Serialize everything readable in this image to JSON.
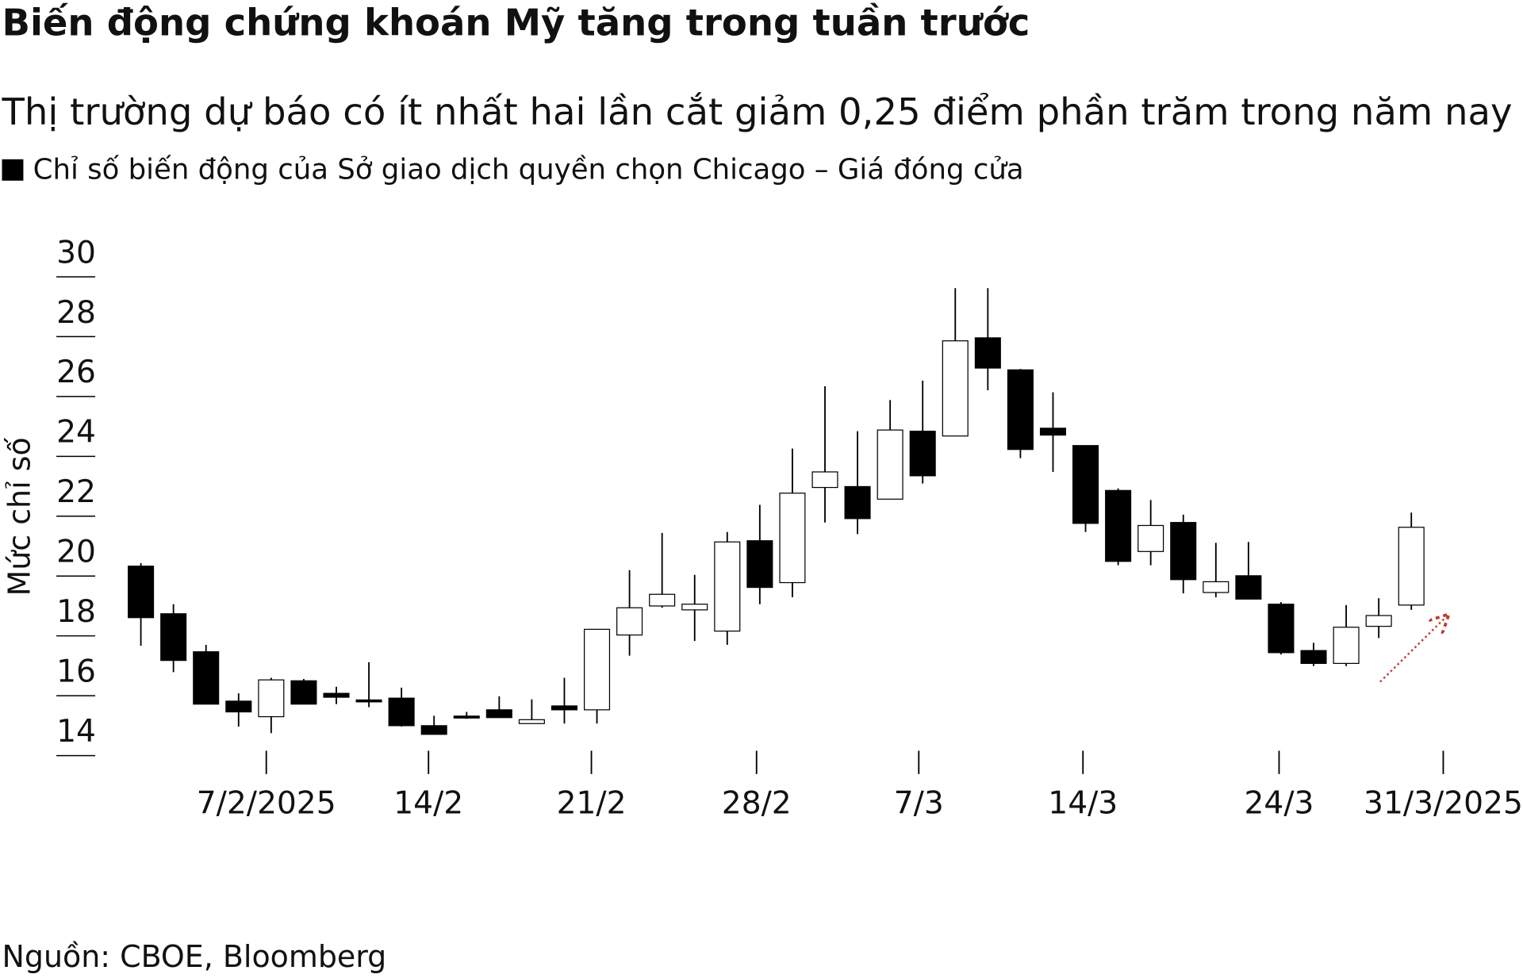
{
  "chart_data": {
    "type": "candlestick",
    "title": "Biến động chứng khoán Mỹ tăng trong tuần trước",
    "subtitle": "Thị trường dự báo có ít nhất hai lần cắt giảm 0,25 điểm phần trăm trong năm nay",
    "y_label": "Mức chỉ số",
    "source": "Nguồn: CBOE, Bloomberg",
    "categories": [
      null,
      null,
      null,
      null,
      null,
      null,
      null,
      null,
      null,
      null,
      null,
      null,
      null,
      null,
      null,
      null,
      null,
      null,
      null,
      null,
      null,
      null,
      null,
      null,
      null,
      null,
      null,
      null,
      null,
      null,
      null,
      null,
      null,
      null,
      null,
      null,
      null,
      null,
      null,
      null
    ],
    "series": [
      {
        "name": "Chỉ số biến động của Sở giao dịch quyền chọn Chicago – Giá đóng cửa",
        "color": "#000000",
        "increasing_color": "#ffffff",
        "decreasing_color": "#000000",
        "open": [
          20.33,
          18.74,
          17.47,
          15.82,
          15.3,
          16.5,
          16.08,
          15.86,
          15.92,
          15.0,
          15.32,
          15.53,
          15.07,
          15.66,
          15.53,
          18.03,
          19.0,
          18.87,
          18.16,
          21.18,
          19.78,
          22.96,
          22.99,
          22.57,
          24.84,
          24.68,
          27.96,
          26.89,
          24.94,
          24.36,
          22.86,
          20.82,
          21.79,
          19.45,
          20.01,
          19.06,
          17.51,
          17.08,
          18.32,
          19.03
        ],
        "high": [
          20.43,
          19.06,
          17.7,
          16.08,
          16.6,
          16.56,
          16.3,
          17.12,
          16.27,
          15.33,
          15.46,
          15.98,
          15.88,
          16.6,
          18.22,
          20.2,
          21.44,
          20.04,
          21.47,
          22.38,
          24.26,
          26.34,
          24.84,
          25.88,
          26.53,
          29.62,
          29.62,
          26.92,
          26.14,
          24.36,
          22.93,
          22.54,
          22.05,
          21.11,
          21.14,
          19.13,
          17.77,
          19.03,
          19.26,
          22.12
        ],
        "low": [
          17.67,
          16.79,
          15.72,
          14.97,
          14.75,
          15.72,
          15.72,
          15.62,
          14.97,
          14.71,
          15.23,
          15.27,
          15.07,
          15.07,
          15.07,
          17.34,
          18.94,
          17.83,
          17.7,
          19.06,
          19.29,
          21.79,
          21.4,
          22.57,
          23.09,
          24.68,
          26.21,
          23.94,
          23.48,
          21.47,
          20.36,
          20.36,
          19.42,
          19.29,
          19.23,
          17.38,
          16.99,
          16.99,
          17.93,
          18.87
        ],
        "close": [
          18.61,
          17.18,
          15.72,
          15.46,
          16.53,
          15.72,
          15.95,
          15.83,
          15.0,
          14.71,
          15.28,
          15.27,
          15.2,
          15.53,
          18.22,
          18.94,
          19.39,
          19.06,
          21.14,
          19.62,
          22.77,
          23.48,
          21.92,
          24.88,
          23.35,
          27.86,
          26.95,
          24.23,
          24.71,
          21.76,
          20.49,
          21.69,
          19.88,
          19.81,
          19.23,
          17.44,
          17.08,
          18.29,
          18.68,
          21.63
        ]
      }
    ],
    "xlim": [
      -1,
      41
    ],
    "xticks": [
      {
        "value": 3.85,
        "label": "7/2/2025"
      },
      {
        "value": 8.83,
        "label": "14/2"
      },
      {
        "value": 13.83,
        "label": "21/2"
      },
      {
        "value": 18.9,
        "label": "28/2"
      },
      {
        "value": 23.88,
        "label": "7/3"
      },
      {
        "value": 28.92,
        "label": "14/3"
      },
      {
        "value": 34.94,
        "label": "24/3"
      },
      {
        "value": 39.98,
        "label": "31/3/2025"
      }
    ],
    "ylim": [
      14,
      30
    ],
    "yticks": [
      14,
      16,
      18,
      20,
      22,
      24,
      26,
      28,
      30
    ]
  }
}
